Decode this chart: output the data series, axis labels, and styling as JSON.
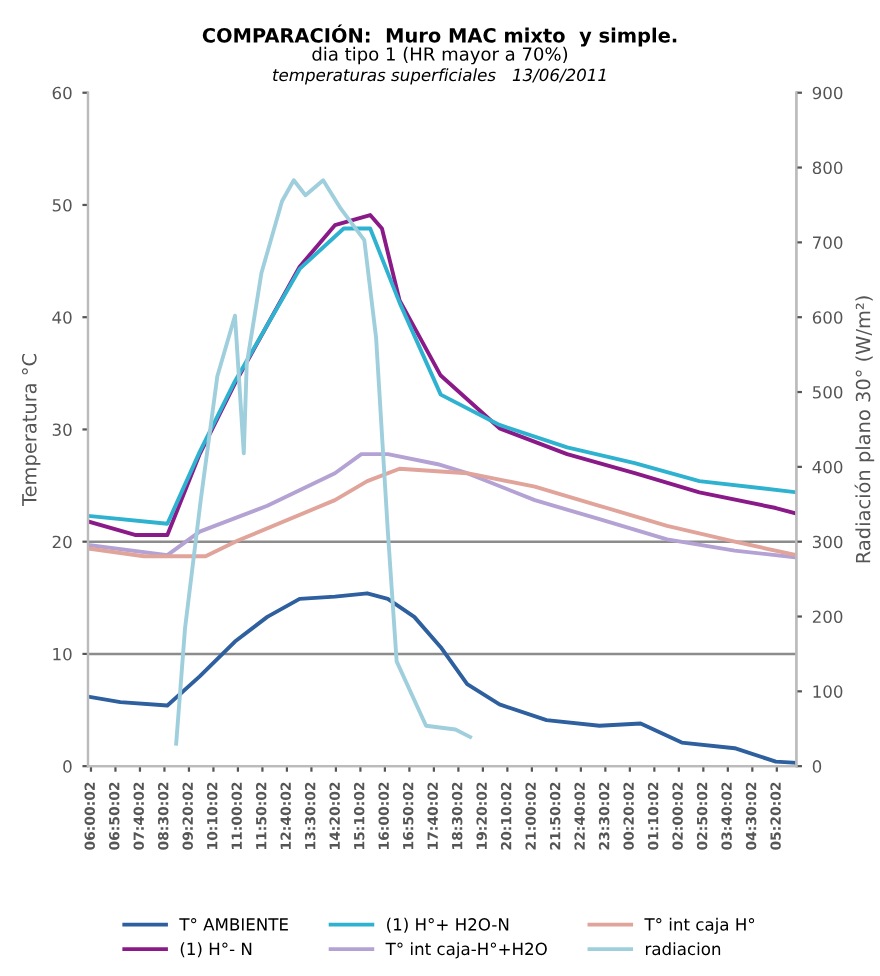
{
  "chart_data": {
    "type": "line",
    "title": "COMPARACIÓN:  Muro MAC mixto  y simple.",
    "subtitle": "dia tipo 1 (HR mayor a 70%)",
    "annotations": [
      "temperaturas superficiales   13/06/2011"
    ],
    "ylabel": "Temperatura °C",
    "y2label": "Radiación plano 30° (W/m²)",
    "xlim": [
      "2011-06-13T05:54",
      "2011-06-14T06:00"
    ],
    "ylim": [
      0,
      60
    ],
    "yticks": [
      0,
      10,
      20,
      30,
      40,
      50,
      60
    ],
    "y2lim": [
      0,
      900
    ],
    "y2ticks": [
      0,
      100,
      200,
      300,
      400,
      500,
      600,
      700,
      800,
      900
    ],
    "xticks": [
      {
        "value": "2011-06-13T06:00:02",
        "label": "06:00:02"
      },
      {
        "value": "2011-06-13T06:50:02",
        "label": "06:50:02"
      },
      {
        "value": "2011-06-13T07:40:02",
        "label": "07:40:02"
      },
      {
        "value": "2011-06-13T08:30:02",
        "label": "08:30:02"
      },
      {
        "value": "2011-06-13T09:20:02",
        "label": "09:20:02"
      },
      {
        "value": "2011-06-13T10:10:02",
        "label": "10:10:02"
      },
      {
        "value": "2011-06-13T11:00:02",
        "label": "11:00:02"
      },
      {
        "value": "2011-06-13T11:50:02",
        "label": "11:50:02"
      },
      {
        "value": "2011-06-13T12:40:02",
        "label": "12:40:02"
      },
      {
        "value": "2011-06-13T13:30:02",
        "label": "13:30:02"
      },
      {
        "value": "2011-06-13T14:20:02",
        "label": "14:20:02"
      },
      {
        "value": "2011-06-13T15:10:02",
        "label": "15:10:02"
      },
      {
        "value": "2011-06-13T16:00:02",
        "label": "16:00:02"
      },
      {
        "value": "2011-06-13T16:50:02",
        "label": "16:50:02"
      },
      {
        "value": "2011-06-13T17:40:02",
        "label": "17:40:02"
      },
      {
        "value": "2011-06-13T18:30:02",
        "label": "18:30:02"
      },
      {
        "value": "2011-06-13T19:20:02",
        "label": "19:20:02"
      },
      {
        "value": "2011-06-13T20:10:02",
        "label": "20:10:02"
      },
      {
        "value": "2011-06-13T21:00:02",
        "label": "21:00:02"
      },
      {
        "value": "2011-06-13T21:50:02",
        "label": "21:50:02"
      },
      {
        "value": "2011-06-13T22:40:02",
        "label": "22:40:02"
      },
      {
        "value": "2011-06-13T23:30:02",
        "label": "23:30:02"
      },
      {
        "value": "2011-06-14T00:20:02",
        "label": "00:20:02"
      },
      {
        "value": "2011-06-14T01:10:02",
        "label": "01:10:02"
      },
      {
        "value": "2011-06-14T02:00:02",
        "label": "02:00:02"
      },
      {
        "value": "2011-06-14T02:50:02",
        "label": "02:50:02"
      },
      {
        "value": "2011-06-14T03:40:02",
        "label": "03:40:02"
      },
      {
        "value": "2011-06-14T04:30:02",
        "label": "04:30:02"
      },
      {
        "value": "2011-06-14T05:20:02",
        "label": "05:20:02"
      }
    ],
    "ref_lines": [
      {
        "axis": "y",
        "value": 10,
        "color": "#8c8c8c"
      },
      {
        "axis": "y",
        "value": 20,
        "color": "#8c8c8c"
      }
    ],
    "legend": "bottom",
    "marker": "none",
    "line_style": "solid",
    "series": [
      {
        "name": "T° AMBIENTE",
        "color": "#2e5f9e",
        "x": [
          "2011-06-13T05:54",
          "2011-06-13T07:00",
          "2011-06-13T08:36",
          "2011-06-13T09:42",
          "2011-06-13T10:54",
          "2011-06-13T12:00",
          "2011-06-13T13:06",
          "2011-06-13T14:18",
          "2011-06-13T15:24",
          "2011-06-13T16:06",
          "2011-06-13T17:00",
          "2011-06-13T17:54",
          "2011-06-13T18:48",
          "2011-06-13T19:54",
          "2011-06-13T21:30",
          "2011-06-13T23:18",
          "2011-06-14T00:42",
          "2011-06-14T02:06",
          "2011-06-14T03:54",
          "2011-06-14T05:18",
          "2011-06-14T06:00"
        ],
        "values": [
          6.2,
          5.7,
          5.4,
          8.0,
          11.1,
          13.3,
          14.9,
          15.1,
          15.4,
          14.9,
          13.3,
          10.6,
          7.3,
          5.5,
          4.1,
          3.6,
          3.8,
          2.1,
          1.6,
          0.4,
          0.3
        ]
      },
      {
        "name": "(1) H°- N",
        "color": "#8b1a89",
        "x": [
          "2011-06-13T05:54",
          "2011-06-13T07:30",
          "2011-06-13T08:36",
          "2011-06-13T09:42",
          "2011-06-13T10:54",
          "2011-06-13T12:00",
          "2011-06-13T13:06",
          "2011-06-13T14:18",
          "2011-06-13T15:30",
          "2011-06-13T15:54",
          "2011-06-13T16:30",
          "2011-06-13T17:54",
          "2011-06-13T19:54",
          "2011-06-13T22:12",
          "2011-06-14T00:30",
          "2011-06-14T02:42",
          "2011-06-14T05:18",
          "2011-06-14T06:00"
        ],
        "values": [
          21.8,
          20.6,
          20.6,
          27.8,
          34.1,
          39.3,
          44.5,
          48.2,
          49.1,
          47.9,
          41.5,
          34.8,
          30.1,
          27.8,
          26.1,
          24.4,
          23.0,
          22.5
        ]
      },
      {
        "name": "(1) H°+ H2O-N",
        "color": "#2fb2cf",
        "x": [
          "2011-06-13T05:54",
          "2011-06-13T08:36",
          "2011-06-13T09:42",
          "2011-06-13T10:54",
          "2011-06-13T12:00",
          "2011-06-13T13:06",
          "2011-06-13T14:36",
          "2011-06-13T15:30",
          "2011-06-13T16:30",
          "2011-06-13T17:54",
          "2011-06-13T19:54",
          "2011-06-13T22:12",
          "2011-06-14T00:30",
          "2011-06-14T02:42",
          "2011-06-14T06:00"
        ],
        "values": [
          22.3,
          21.6,
          28.0,
          34.3,
          39.3,
          44.3,
          47.9,
          47.9,
          41.3,
          33.1,
          30.4,
          28.4,
          27.0,
          25.4,
          24.4
        ]
      },
      {
        "name": "T° int caja-H°+H2O",
        "color": "#b3a2d3",
        "x": [
          "2011-06-13T05:54",
          "2011-06-13T08:36",
          "2011-06-13T09:42",
          "2011-06-13T12:00",
          "2011-06-13T14:18",
          "2011-06-13T15:12",
          "2011-06-13T16:06",
          "2011-06-13T17:48",
          "2011-06-13T18:48",
          "2011-06-13T21:06",
          "2011-06-13T23:18",
          "2011-06-14T01:36",
          "2011-06-14T03:54",
          "2011-06-14T06:00"
        ],
        "values": [
          19.7,
          18.8,
          20.9,
          23.2,
          26.1,
          27.8,
          27.8,
          26.9,
          26.1,
          23.7,
          22.0,
          20.2,
          19.2,
          18.6
        ]
      },
      {
        "name": "T° int caja H°",
        "color": "#e0a49a",
        "x": [
          "2011-06-13T05:54",
          "2011-06-13T07:48",
          "2011-06-13T09:54",
          "2011-06-13T11:00",
          "2011-06-13T14:18",
          "2011-06-13T15:24",
          "2011-06-13T16:30",
          "2011-06-13T18:48",
          "2011-06-13T21:06",
          "2011-06-13T23:18",
          "2011-06-14T01:36",
          "2011-06-14T03:54",
          "2011-06-14T06:00"
        ],
        "values": [
          19.4,
          18.7,
          18.7,
          20.1,
          23.7,
          25.4,
          26.5,
          26.1,
          24.9,
          23.2,
          21.4,
          20.0,
          18.8
        ]
      },
      {
        "name": "radiacion",
        "color": "#9fcfdc",
        "axis": "y2",
        "x": [
          "2011-06-13T08:54",
          "2011-06-13T09:12",
          "2011-06-13T09:44",
          "2011-06-13T10:18",
          "2011-06-13T10:54",
          "2011-06-13T11:12",
          "2011-06-13T11:18",
          "2011-06-13T11:48",
          "2011-06-13T12:30",
          "2011-06-13T12:54",
          "2011-06-13T13:18",
          "2011-06-13T13:54",
          "2011-06-13T14:30",
          "2011-06-13T15:18",
          "2011-06-13T15:42",
          "2011-06-13T16:06",
          "2011-06-13T16:24",
          "2011-06-13T17:24",
          "2011-06-13T18:24",
          "2011-06-13T18:54"
        ],
        "values": [
          30,
          184,
          355,
          521,
          602,
          418,
          537,
          659,
          755,
          783,
          763,
          783,
          745,
          703,
          573,
          314,
          140,
          54,
          49,
          39
        ]
      }
    ]
  }
}
